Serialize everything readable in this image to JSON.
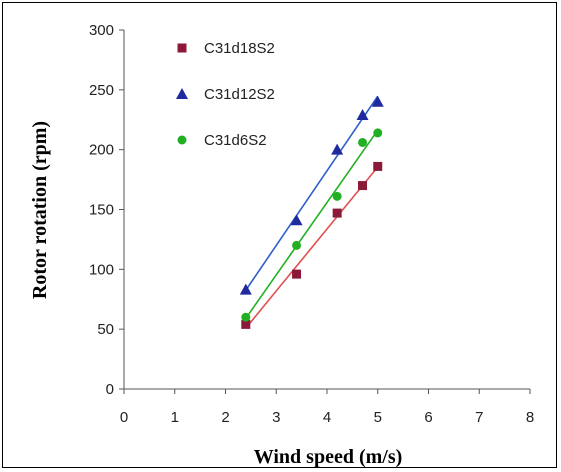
{
  "chart_data": {
    "type": "scatter",
    "xlabel": "Wind speed (m/s)",
    "ylabel": "Rotor rotation (rpm)",
    "xlim": [
      0,
      8
    ],
    "ylim": [
      0,
      300
    ],
    "x_ticks": [
      0,
      1,
      2,
      3,
      4,
      5,
      6,
      7,
      8
    ],
    "y_ticks": [
      0,
      50,
      100,
      150,
      200,
      250,
      300
    ],
    "grid": false,
    "legend_position": "top-left",
    "trendlines": true,
    "series": [
      {
        "name": "C31d18S2",
        "marker": "square",
        "color": "#8B1A3A",
        "line_color": "#E05050",
        "x": [
          2.4,
          3.4,
          4.2,
          4.7,
          5.0
        ],
        "y": [
          54,
          96,
          147,
          170,
          186
        ]
      },
      {
        "name": "C31d12S2",
        "marker": "triangle",
        "color": "#1F2A9E",
        "line_color": "#2E5FC9",
        "x": [
          2.4,
          3.4,
          4.2,
          4.7,
          5.0
        ],
        "y": [
          83,
          141,
          200,
          229,
          240
        ]
      },
      {
        "name": "C31d6S2",
        "marker": "circle",
        "color": "#22B022",
        "line_color": "#22B022",
        "x": [
          2.4,
          3.4,
          4.2,
          4.7,
          5.0
        ],
        "y": [
          60,
          120,
          161,
          206,
          214
        ]
      }
    ]
  }
}
